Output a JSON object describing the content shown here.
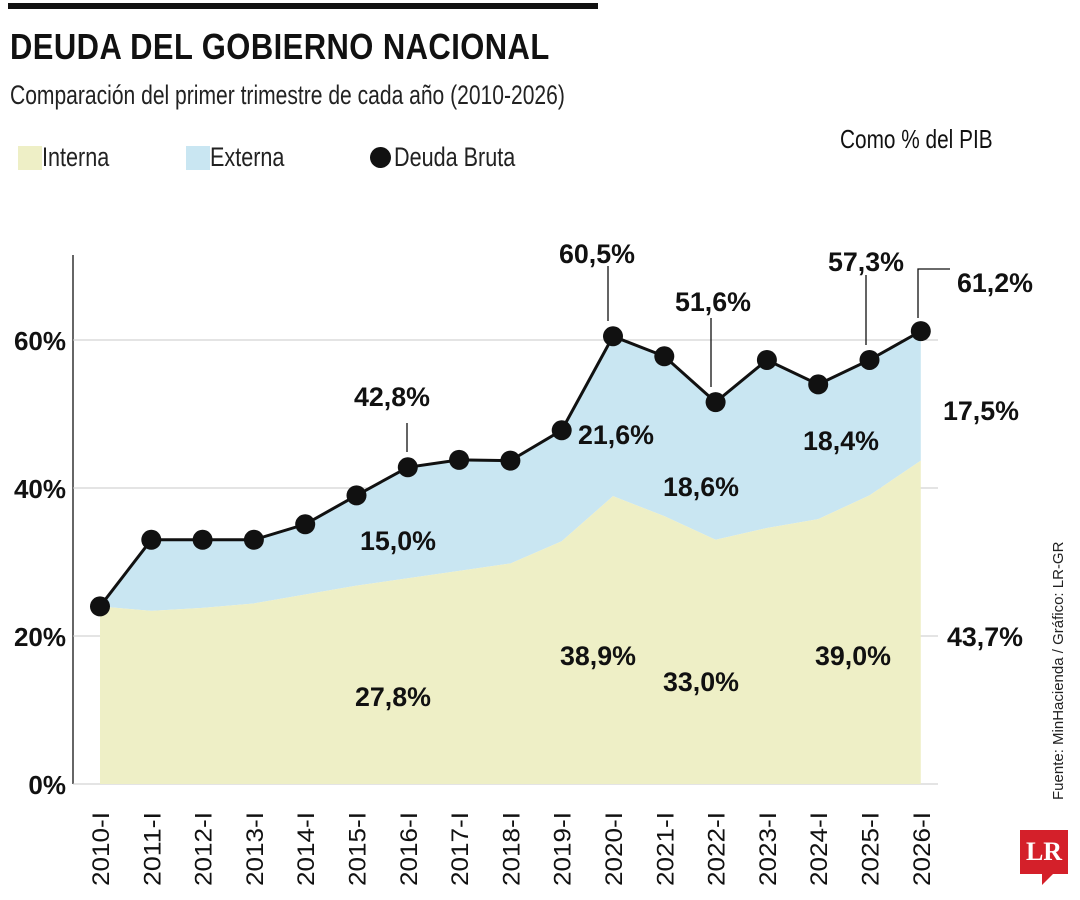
{
  "header": {
    "title": "DEUDA DEL GOBIERNO NACIONAL",
    "subtitle": "Comparación del primer trimestre de cada año (2010-2026)",
    "units": "Como % del PIB"
  },
  "legend": [
    {
      "label": "Interna",
      "color": "#eeefc6"
    },
    {
      "label": "Externa",
      "color": "#c9e6f2"
    },
    {
      "label": "Deuda Bruta",
      "color": "#111111"
    }
  ],
  "source": "Fuente: MinHacienda / Gráfico: LR-GR",
  "logo": "LR",
  "chart_data": {
    "type": "area",
    "x": [
      "2010-I",
      "2011-I",
      "2012-I",
      "2013-I",
      "2014-I",
      "2015-I",
      "2016-I",
      "2017-I",
      "2018-I",
      "2019-I",
      "2020-I",
      "2021-I",
      "2022-I",
      "2023-I",
      "2024-I",
      "2025-I",
      "2026-I"
    ],
    "ylim": [
      0,
      70
    ],
    "yticks": [
      0,
      20,
      40,
      60
    ],
    "ytick_labels": [
      "0%",
      "20%",
      "40%",
      "60%"
    ],
    "grid": true,
    "series": [
      {
        "name": "Interna",
        "type": "area",
        "color": "#eeefc6",
        "values": [
          24.0,
          23.4,
          23.8,
          24.4,
          25.6,
          26.8,
          27.8,
          28.8,
          29.8,
          32.8,
          38.9,
          36.2,
          33.0,
          34.6,
          35.8,
          39.0,
          43.7
        ]
      },
      {
        "name": "Externa",
        "type": "area",
        "color": "#c9e6f2",
        "values": [
          0.0,
          9.6,
          9.2,
          8.6,
          9.5,
          12.2,
          15.0,
          15.0,
          13.9,
          15.0,
          21.6,
          21.6,
          18.6,
          22.7,
          18.2,
          18.4,
          17.5
        ]
      },
      {
        "name": "Deuda Bruta",
        "type": "line",
        "color": "#111111",
        "values": [
          24.0,
          33.0,
          33.0,
          33.0,
          35.1,
          39.0,
          42.8,
          43.8,
          43.7,
          47.8,
          60.5,
          57.8,
          51.6,
          57.3,
          54.0,
          57.3,
          61.2
        ]
      }
    ],
    "annotations": [
      {
        "text": "42,8%",
        "series": "Deuda Bruta",
        "x": "2016-I"
      },
      {
        "text": "60,5%",
        "series": "Deuda Bruta",
        "x": "2020-I"
      },
      {
        "text": "51,6%",
        "series": "Deuda Bruta",
        "x": "2022-I"
      },
      {
        "text": "57,3%",
        "series": "Deuda Bruta",
        "x": "2025-I"
      },
      {
        "text": "61,2%",
        "series": "Deuda Bruta",
        "x": "2026-I"
      },
      {
        "text": "15,0%",
        "series": "Externa",
        "x": "2016-I"
      },
      {
        "text": "21,6%",
        "series": "Externa",
        "x": "2020-I"
      },
      {
        "text": "18,6%",
        "series": "Externa",
        "x": "2022-I"
      },
      {
        "text": "18,4%",
        "series": "Externa",
        "x": "2025-I"
      },
      {
        "text": "17,5%",
        "series": "Externa",
        "x": "2026-I"
      },
      {
        "text": "27,8%",
        "series": "Interna",
        "x": "2016-I"
      },
      {
        "text": "38,9%",
        "series": "Interna",
        "x": "2020-I"
      },
      {
        "text": "33,0%",
        "series": "Interna",
        "x": "2022-I"
      },
      {
        "text": "39,0%",
        "series": "Interna",
        "x": "2025-I"
      },
      {
        "text": "43,7%",
        "series": "Interna",
        "x": "2026-I"
      }
    ]
  }
}
